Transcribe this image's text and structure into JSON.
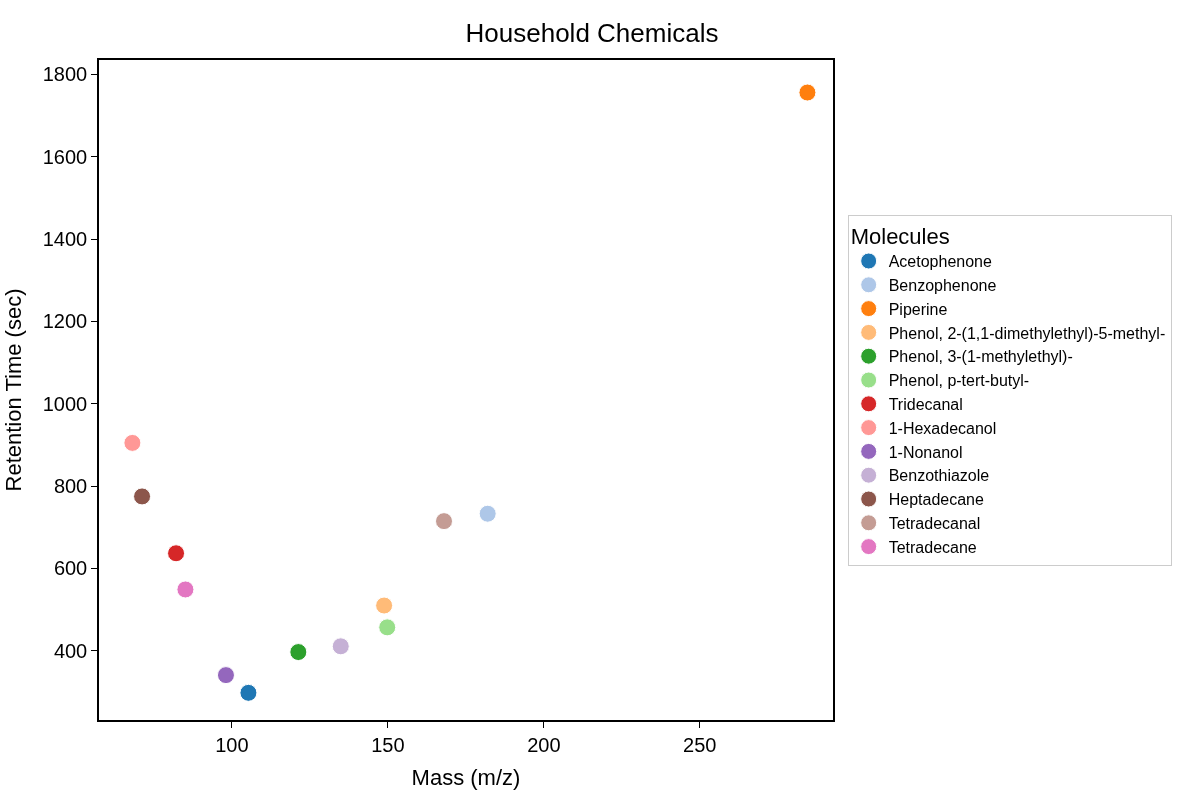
{
  "chart_data": {
    "type": "scatter",
    "title": "Household Chemicals",
    "xlabel": "Mass (m/z)",
    "ylabel": "Retention Time (sec)",
    "legend_title": "Molecules",
    "legend": "right",
    "marker": "circle",
    "xlim": [
      57.4,
      292.7
    ],
    "xticks": [
      100,
      150,
      200,
      250
    ],
    "ylim": [
      232,
      1835
    ],
    "yticks": [
      400,
      600,
      800,
      1000,
      1200,
      1400,
      1600,
      1800
    ],
    "series": [
      {
        "name": "Acetophenone",
        "color": "#1f77b4",
        "x": [
          105.3
        ],
        "values": [
          298
        ]
      },
      {
        "name": "Benzophenone",
        "color": "#aec7e8",
        "x": [
          182.0
        ],
        "values": [
          733
        ]
      },
      {
        "name": "Piperine",
        "color": "#ff7f0e",
        "x": [
          284.5
        ],
        "values": [
          1756
        ]
      },
      {
        "name": "Phenol, 2-(1,1-dimethylethyl)-5-methyl-",
        "color": "#ffbb78",
        "x": [
          148.8
        ],
        "values": [
          510
        ]
      },
      {
        "name": "Phenol, 3-(1-methylethyl)-",
        "color": "#2ca02c",
        "x": [
          121.3
        ],
        "values": [
          397
        ]
      },
      {
        "name": "Phenol, p-tert-butyl-",
        "color": "#98df8a",
        "x": [
          149.8
        ],
        "values": [
          457
        ]
      },
      {
        "name": "Tridecanal",
        "color": "#d62728",
        "x": [
          82.1
        ],
        "values": [
          637
        ]
      },
      {
        "name": "1-Hexadecanol",
        "color": "#ff9896",
        "x": [
          68.1
        ],
        "values": [
          905
        ]
      },
      {
        "name": "1-Nonanol",
        "color": "#9467bd",
        "x": [
          98.1
        ],
        "values": [
          341
        ]
      },
      {
        "name": "Benzothiazole",
        "color": "#c5b0d5",
        "x": [
          134.9
        ],
        "values": [
          411
        ]
      },
      {
        "name": "Heptadecane",
        "color": "#8c564b",
        "x": [
          71.2
        ],
        "values": [
          775
        ]
      },
      {
        "name": "Tetradecanal",
        "color": "#c49c94",
        "x": [
          168.0
        ],
        "values": [
          715
        ]
      },
      {
        "name": "Tetradecane",
        "color": "#e377c2",
        "x": [
          85.1
        ],
        "values": [
          549
        ]
      }
    ]
  }
}
